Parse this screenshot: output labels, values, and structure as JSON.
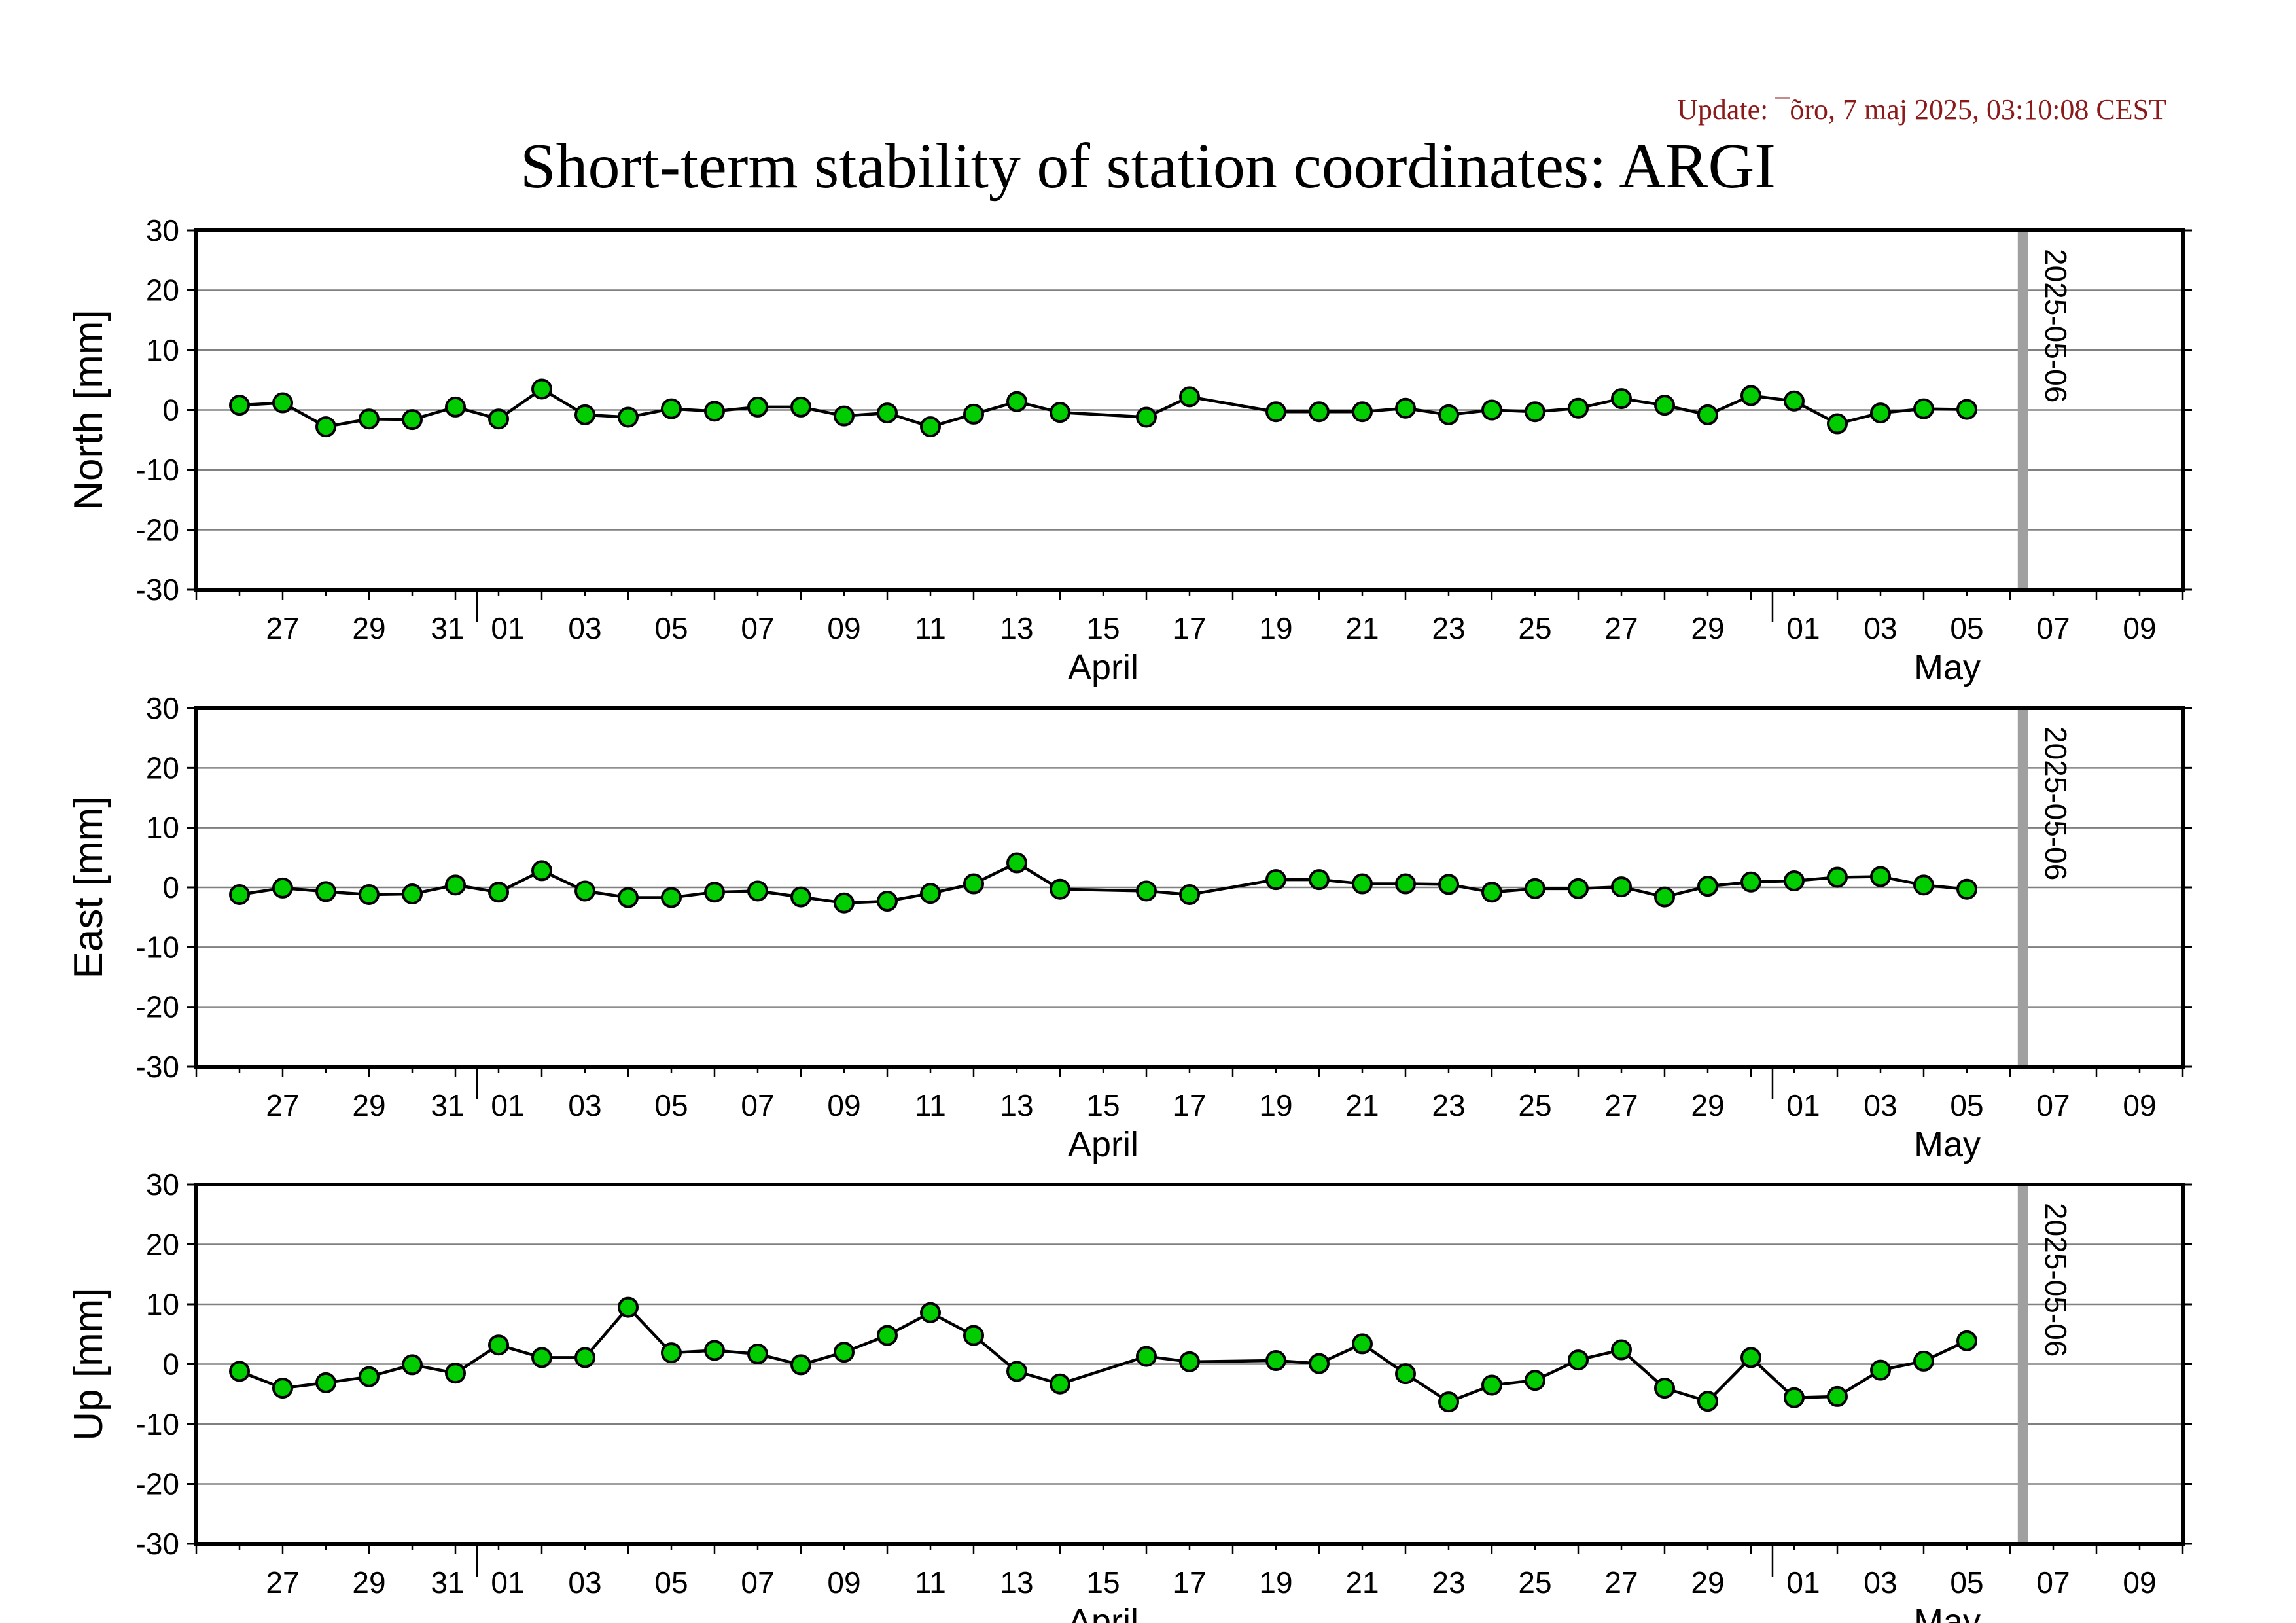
{
  "header": {
    "update": "Update: ¯õro, 7 maj 2025, 03:10:08 CEST",
    "title": "Short-term stability of station coordinates: ARGI"
  },
  "colors": {
    "marker_fill": "#00cc00",
    "marker_stroke": "#000000",
    "line": "#000000",
    "gridline": "#808080",
    "date_marker": "#a0a0a0",
    "update_text": "#8b1a1a"
  },
  "chart_data": [
    {
      "type": "line",
      "ylabel": "North [mm]",
      "ylim": [
        -30,
        30
      ],
      "yticks": [
        30,
        20,
        10,
        0,
        -10,
        -20,
        -30
      ],
      "xlim": [
        "2025-03-25",
        "2025-05-10"
      ],
      "x_tick_labels": [
        "27",
        "29",
        "31",
        "01",
        "03",
        "05",
        "07",
        "09",
        "11",
        "13",
        "15",
        "17",
        "19",
        "21",
        "23",
        "25",
        "27",
        "29",
        "01",
        "03",
        "05",
        "07",
        "09"
      ],
      "month_labels": [
        "April",
        "May"
      ],
      "grid": true,
      "marker_label": "2025-05-06",
      "marker_date": "2025-05-06",
      "series": [
        {
          "x": [
            "2025-03-26",
            "2025-03-27",
            "2025-03-28",
            "2025-03-29",
            "2025-03-30",
            "2025-03-31",
            "2025-04-01",
            "2025-04-02",
            "2025-04-03",
            "2025-04-04",
            "2025-04-05",
            "2025-04-06",
            "2025-04-07",
            "2025-04-08",
            "2025-04-09",
            "2025-04-10",
            "2025-04-11",
            "2025-04-12",
            "2025-04-13",
            "2025-04-14",
            "2025-04-16",
            "2025-04-17",
            "2025-04-19",
            "2025-04-20",
            "2025-04-21",
            "2025-04-22",
            "2025-04-23",
            "2025-04-24",
            "2025-04-25",
            "2025-04-26",
            "2025-04-27",
            "2025-04-28",
            "2025-04-29",
            "2025-04-30",
            "2025-05-01",
            "2025-05-02",
            "2025-05-03",
            "2025-05-04",
            "2025-05-05"
          ],
          "values": [
            0.8,
            1.2,
            -2.8,
            -1.5,
            -1.6,
            0.5,
            -1.5,
            3.5,
            -0.8,
            -1.2,
            0.2,
            -0.2,
            0.5,
            0.5,
            -1.0,
            -0.5,
            -2.8,
            -0.7,
            1.4,
            -0.4,
            -1.2,
            2.2,
            -0.3,
            -0.3,
            -0.3,
            0.3,
            -0.8,
            0.0,
            -0.3,
            0.3,
            1.9,
            0.8,
            -0.8,
            2.4,
            1.5,
            -2.3,
            -0.5,
            0.2,
            0.1
          ]
        }
      ]
    },
    {
      "type": "line",
      "ylabel": "East [mm]",
      "ylim": [
        -30,
        30
      ],
      "yticks": [
        30,
        20,
        10,
        0,
        -10,
        -20,
        -30
      ],
      "xlim": [
        "2025-03-25",
        "2025-05-10"
      ],
      "x_tick_labels": [
        "27",
        "29",
        "31",
        "01",
        "03",
        "05",
        "07",
        "09",
        "11",
        "13",
        "15",
        "17",
        "19",
        "21",
        "23",
        "25",
        "27",
        "29",
        "01",
        "03",
        "05",
        "07",
        "09"
      ],
      "month_labels": [
        "April",
        "May"
      ],
      "grid": true,
      "marker_label": "2025-05-06",
      "marker_date": "2025-05-06",
      "series": [
        {
          "x": [
            "2025-03-26",
            "2025-03-27",
            "2025-03-28",
            "2025-03-29",
            "2025-03-30",
            "2025-03-31",
            "2025-04-01",
            "2025-04-02",
            "2025-04-03",
            "2025-04-04",
            "2025-04-05",
            "2025-04-06",
            "2025-04-07",
            "2025-04-08",
            "2025-04-09",
            "2025-04-10",
            "2025-04-11",
            "2025-04-12",
            "2025-04-13",
            "2025-04-14",
            "2025-04-16",
            "2025-04-17",
            "2025-04-19",
            "2025-04-20",
            "2025-04-21",
            "2025-04-22",
            "2025-04-23",
            "2025-04-24",
            "2025-04-25",
            "2025-04-26",
            "2025-04-27",
            "2025-04-28",
            "2025-04-29",
            "2025-04-30",
            "2025-05-01",
            "2025-05-02",
            "2025-05-03",
            "2025-05-04",
            "2025-05-05"
          ],
          "values": [
            -1.2,
            -0.1,
            -0.7,
            -1.2,
            -1.1,
            0.4,
            -0.8,
            2.8,
            -0.6,
            -1.7,
            -1.7,
            -0.8,
            -0.6,
            -1.6,
            -2.6,
            -2.3,
            -1.0,
            0.6,
            4.1,
            -0.3,
            -0.6,
            -1.2,
            1.3,
            1.3,
            0.6,
            0.6,
            0.5,
            -0.8,
            -0.2,
            -0.2,
            0.1,
            -1.6,
            0.2,
            0.9,
            1.1,
            1.7,
            1.8,
            0.4,
            -0.3
          ]
        }
      ]
    },
    {
      "type": "line",
      "ylabel": "Up [mm]",
      "ylim": [
        -30,
        30
      ],
      "yticks": [
        30,
        20,
        10,
        0,
        -10,
        -20,
        -30
      ],
      "xlim": [
        "2025-03-25",
        "2025-05-10"
      ],
      "x_tick_labels": [
        "27",
        "29",
        "31",
        "01",
        "03",
        "05",
        "07",
        "09",
        "11",
        "13",
        "15",
        "17",
        "19",
        "21",
        "23",
        "25",
        "27",
        "29",
        "01",
        "03",
        "05",
        "07",
        "09"
      ],
      "month_labels": [
        "April",
        "May"
      ],
      "grid": true,
      "marker_label": "2025-05-06",
      "marker_date": "2025-05-06",
      "series": [
        {
          "x": [
            "2025-03-26",
            "2025-03-27",
            "2025-03-28",
            "2025-03-29",
            "2025-03-30",
            "2025-03-31",
            "2025-04-01",
            "2025-04-02",
            "2025-04-03",
            "2025-04-04",
            "2025-04-05",
            "2025-04-06",
            "2025-04-07",
            "2025-04-08",
            "2025-04-09",
            "2025-04-10",
            "2025-04-11",
            "2025-04-12",
            "2025-04-13",
            "2025-04-14",
            "2025-04-16",
            "2025-04-17",
            "2025-04-19",
            "2025-04-20",
            "2025-04-21",
            "2025-04-22",
            "2025-04-23",
            "2025-04-24",
            "2025-04-25",
            "2025-04-26",
            "2025-04-27",
            "2025-04-28",
            "2025-04-29",
            "2025-04-30",
            "2025-05-01",
            "2025-05-02",
            "2025-05-03",
            "2025-05-04",
            "2025-05-05"
          ],
          "values": [
            -1.2,
            -4.0,
            -3.1,
            -2.1,
            -0.1,
            -1.5,
            3.2,
            1.1,
            1.1,
            9.5,
            1.9,
            2.3,
            1.7,
            -0.1,
            2.0,
            4.8,
            8.6,
            4.8,
            -1.2,
            -3.3,
            1.3,
            0.4,
            0.6,
            0.1,
            3.4,
            -1.6,
            -6.3,
            -3.5,
            -2.7,
            0.7,
            2.4,
            -4.0,
            -6.2,
            1.1,
            -5.6,
            -5.4,
            -1.0,
            0.5,
            3.9
          ]
        }
      ]
    }
  ]
}
